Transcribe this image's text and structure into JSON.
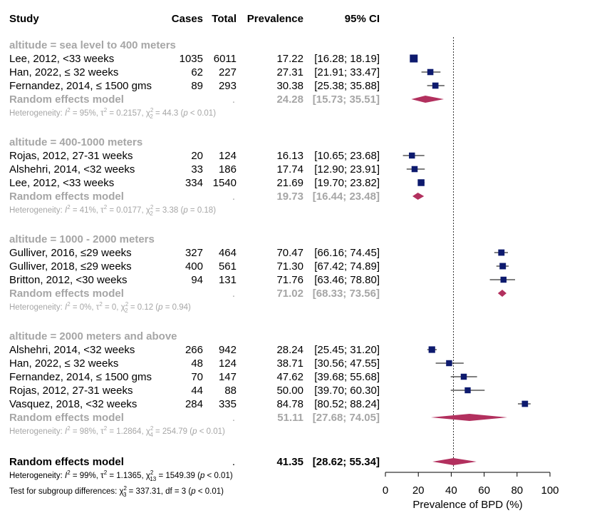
{
  "columns": {
    "study": "Study",
    "cases": "Cases",
    "total": "Total",
    "prevalence": "Prevalence",
    "ci": "95% CI"
  },
  "colors": {
    "square": "#0d1a6e",
    "diamond": "#b2305e",
    "subgroup_text": "#a6a6a6",
    "text": "#000000"
  },
  "chart_data": {
    "type": "forest",
    "xlabel": "Prevalence of BPD (%)",
    "xlim": [
      0,
      100
    ],
    "xticks": [
      0,
      20,
      40,
      60,
      80,
      100
    ],
    "reference_line": 41.35,
    "groups": [
      {
        "title": "altitude = sea level to 400 meters",
        "studies": [
          {
            "label": "Lee, 2012, <33 weeks",
            "cases": "1035",
            "total": "6011",
            "prev": 17.22,
            "lo": 16.28,
            "hi": 18.19,
            "prev_text": "17.22",
            "ci_text": "[16.28; 18.19]"
          },
          {
            "label": "Han, 2022, ≤ 32 weeks",
            "cases": "62",
            "total": "227",
            "prev": 27.31,
            "lo": 21.91,
            "hi": 33.47,
            "prev_text": "27.31",
            "ci_text": "[21.91; 33.47]"
          },
          {
            "label": "Fernandez, 2014, ≤ 1500 gms",
            "cases": "89",
            "total": "293",
            "prev": 30.38,
            "lo": 25.38,
            "hi": 35.88,
            "prev_text": "30.38",
            "ci_text": "[25.38; 35.88]"
          }
        ],
        "re": {
          "label": "Random effects model",
          "dot": ".",
          "prev": 24.28,
          "lo": 15.73,
          "hi": 35.51,
          "prev_text": "24.28",
          "ci_text": "[15.73; 35.51]"
        },
        "het": {
          "a": "Heterogeneity: ",
          "i": "I",
          "b": " = 95%, τ",
          "c": " = 0.2157, χ",
          "df": "2",
          "d": " = 44.3 (",
          "p": "p",
          "e": " < 0.01)"
        }
      },
      {
        "title": "altitude = 400-1000 meters",
        "studies": [
          {
            "label": "Rojas, 2012, 27-31 weeks",
            "cases": "20",
            "total": "124",
            "prev": 16.13,
            "lo": 10.65,
            "hi": 23.68,
            "prev_text": "16.13",
            "ci_text": "[10.65; 23.68]"
          },
          {
            "label": "Alshehri, 2014, <32 weeks",
            "cases": "33",
            "total": "186",
            "prev": 17.74,
            "lo": 12.9,
            "hi": 23.91,
            "prev_text": "17.74",
            "ci_text": "[12.90; 23.91]"
          },
          {
            "label": "Lee, 2012, <33 weeks",
            "cases": "334",
            "total": "1540",
            "prev": 21.69,
            "lo": 19.7,
            "hi": 23.82,
            "prev_text": "21.69",
            "ci_text": "[19.70; 23.82]"
          }
        ],
        "re": {
          "label": "Random effects model",
          "dot": ".",
          "prev": 19.73,
          "lo": 16.44,
          "hi": 23.48,
          "prev_text": "19.73",
          "ci_text": "[16.44; 23.48]"
        },
        "het": {
          "a": "Heterogeneity: ",
          "i": "I",
          "b": " = 41%, τ",
          "c": " = 0.0177, χ",
          "df": "2",
          "d": " = 3.38 (",
          "p": "p",
          "e": " = 0.18)"
        }
      },
      {
        "title": "altitude = 1000 - 2000 meters",
        "studies": [
          {
            "label": "Gulliver, 2016, ≤29 weeks",
            "cases": "327",
            "total": "464",
            "prev": 70.47,
            "lo": 66.16,
            "hi": 74.45,
            "prev_text": "70.47",
            "ci_text": "[66.16; 74.45]"
          },
          {
            "label": "Gulliver, 2018, ≤29 weeks",
            "cases": "400",
            "total": "561",
            "prev": 71.3,
            "lo": 67.42,
            "hi": 74.89,
            "prev_text": "71.30",
            "ci_text": "[67.42; 74.89]"
          },
          {
            "label": "Britton, 2012, <30 weeks",
            "cases": "94",
            "total": "131",
            "prev": 71.76,
            "lo": 63.46,
            "hi": 78.8,
            "prev_text": "71.76",
            "ci_text": "[63.46; 78.80]"
          }
        ],
        "re": {
          "label": "Random effects model",
          "dot": ".",
          "prev": 71.02,
          "lo": 68.33,
          "hi": 73.56,
          "prev_text": "71.02",
          "ci_text": "[68.33; 73.56]"
        },
        "het": {
          "a": "Heterogeneity: ",
          "i": "I",
          "b": " = 0%, τ",
          "c": " = 0, χ",
          "df": "2",
          "d": " = 0.12 (",
          "p": "p",
          "e": " = 0.94)"
        }
      },
      {
        "title": "altitude = 2000 meters and above",
        "studies": [
          {
            "label": "Alshehri, 2014, <32 weeks",
            "cases": "266",
            "total": "942",
            "prev": 28.24,
            "lo": 25.45,
            "hi": 31.2,
            "prev_text": "28.24",
            "ci_text": "[25.45; 31.20]"
          },
          {
            "label": "Han, 2022, ≤ 32 weeks",
            "cases": "48",
            "total": "124",
            "prev": 38.71,
            "lo": 30.56,
            "hi": 47.55,
            "prev_text": "38.71",
            "ci_text": "[30.56; 47.55]"
          },
          {
            "label": "Fernandez, 2014, ≤ 1500 gms",
            "cases": "70",
            "total": "147",
            "prev": 47.62,
            "lo": 39.68,
            "hi": 55.68,
            "prev_text": "47.62",
            "ci_text": "[39.68; 55.68]"
          },
          {
            "label": "Rojas, 2012, 27-31 weeks",
            "cases": "44",
            "total": "88",
            "prev": 50.0,
            "lo": 39.7,
            "hi": 60.3,
            "prev_text": "50.00",
            "ci_text": "[39.70; 60.30]"
          },
          {
            "label": "Vasquez, 2018, <32 weeks",
            "cases": "284",
            "total": "335",
            "prev": 84.78,
            "lo": 80.52,
            "hi": 88.24,
            "prev_text": "84.78",
            "ci_text": "[80.52; 88.24]"
          }
        ],
        "re": {
          "label": "Random effects model",
          "dot": ".",
          "prev": 51.11,
          "lo": 27.68,
          "hi": 74.05,
          "prev_text": "51.11",
          "ci_text": "[27.68; 74.05]"
        },
        "het": {
          "a": "Heterogeneity: ",
          "i": "I",
          "b": " = 98%, τ",
          "c": " = 1.2864, χ",
          "df": "4",
          "d": " = 254.79 (",
          "p": "p",
          "e": " < 0.01)"
        }
      }
    ],
    "overall": {
      "label": "Random effects model",
      "dot": ".",
      "prev": 41.35,
      "lo": 28.62,
      "hi": 55.34,
      "prev_text": "41.35",
      "ci_text": "[28.62; 55.34]",
      "het": {
        "a": "Heterogeneity: ",
        "i": "I",
        "b": " = 99%, τ",
        "c": " = 1.1365, χ",
        "df": "13",
        "d": " = 1549.39 (",
        "p": "p",
        "e": " < 0.01)"
      },
      "subgroup_test": {
        "a": "Test for subgroup differences: χ",
        "df": "3",
        "b": " = 337.31, df = 3 (",
        "p": "p",
        "c": " < 0.01)"
      }
    }
  }
}
